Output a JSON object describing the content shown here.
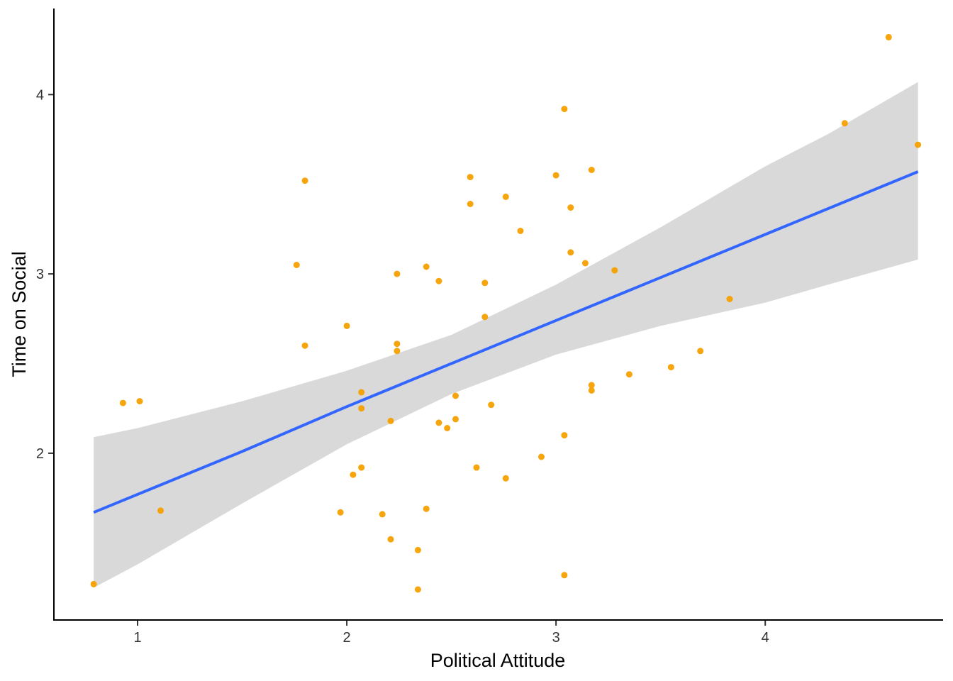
{
  "chart_data": {
    "type": "scatter",
    "title": "",
    "xlabel": "Political Attitude",
    "ylabel": "Time on Social",
    "xlim": [
      0.6,
      4.85
    ],
    "ylim": [
      1.07,
      4.48
    ],
    "xticks": [
      1,
      2,
      3,
      4
    ],
    "yticks": [
      2,
      3,
      4
    ],
    "xtick_labels": [
      "1",
      "2",
      "3",
      "4"
    ],
    "ytick_labels": [
      "2",
      "3",
      "4"
    ],
    "grid": false,
    "legend": "none",
    "point_color": "#F5A000",
    "points": [
      {
        "x": 0.79,
        "y": 1.27
      },
      {
        "x": 0.93,
        "y": 2.28
      },
      {
        "x": 1.01,
        "y": 2.29
      },
      {
        "x": 1.11,
        "y": 1.68
      },
      {
        "x": 1.76,
        "y": 3.05
      },
      {
        "x": 1.8,
        "y": 3.52
      },
      {
        "x": 1.8,
        "y": 2.6
      },
      {
        "x": 1.97,
        "y": 1.67
      },
      {
        "x": 2.0,
        "y": 2.71
      },
      {
        "x": 2.03,
        "y": 1.88
      },
      {
        "x": 2.07,
        "y": 2.34
      },
      {
        "x": 2.07,
        "y": 2.25
      },
      {
        "x": 2.07,
        "y": 1.92
      },
      {
        "x": 2.17,
        "y": 1.66
      },
      {
        "x": 2.21,
        "y": 2.18
      },
      {
        "x": 2.21,
        "y": 1.52
      },
      {
        "x": 2.24,
        "y": 3.0
      },
      {
        "x": 2.24,
        "y": 2.61
      },
      {
        "x": 2.24,
        "y": 2.57
      },
      {
        "x": 2.34,
        "y": 1.46
      },
      {
        "x": 2.34,
        "y": 1.24
      },
      {
        "x": 2.38,
        "y": 3.04
      },
      {
        "x": 2.38,
        "y": 1.69
      },
      {
        "x": 2.44,
        "y": 2.96
      },
      {
        "x": 2.44,
        "y": 2.17
      },
      {
        "x": 2.48,
        "y": 2.14
      },
      {
        "x": 2.52,
        "y": 2.32
      },
      {
        "x": 2.52,
        "y": 2.19
      },
      {
        "x": 2.59,
        "y": 3.54
      },
      {
        "x": 2.59,
        "y": 3.39
      },
      {
        "x": 2.62,
        "y": 1.92
      },
      {
        "x": 2.66,
        "y": 2.95
      },
      {
        "x": 2.66,
        "y": 2.76
      },
      {
        "x": 2.69,
        "y": 2.27
      },
      {
        "x": 2.76,
        "y": 3.43
      },
      {
        "x": 2.76,
        "y": 1.86
      },
      {
        "x": 2.83,
        "y": 3.24
      },
      {
        "x": 2.93,
        "y": 1.98
      },
      {
        "x": 3.0,
        "y": 3.55
      },
      {
        "x": 3.04,
        "y": 3.92
      },
      {
        "x": 3.04,
        "y": 2.1
      },
      {
        "x": 3.04,
        "y": 1.32
      },
      {
        "x": 3.07,
        "y": 3.37
      },
      {
        "x": 3.07,
        "y": 3.12
      },
      {
        "x": 3.14,
        "y": 3.06
      },
      {
        "x": 3.17,
        "y": 3.58
      },
      {
        "x": 3.17,
        "y": 2.38
      },
      {
        "x": 3.17,
        "y": 2.35
      },
      {
        "x": 3.28,
        "y": 3.02
      },
      {
        "x": 3.35,
        "y": 2.44
      },
      {
        "x": 3.55,
        "y": 2.48
      },
      {
        "x": 3.69,
        "y": 2.57
      },
      {
        "x": 3.83,
        "y": 2.86
      },
      {
        "x": 4.38,
        "y": 3.84
      },
      {
        "x": 4.59,
        "y": 4.32
      },
      {
        "x": 4.73,
        "y": 3.72
      }
    ],
    "fit_line": {
      "color": "#3366FF",
      "x": [
        0.79,
        1.5,
        2.0,
        2.5,
        3.0,
        3.5,
        4.0,
        4.73
      ],
      "y": [
        1.67,
        2.01,
        2.26,
        2.5,
        2.74,
        2.98,
        3.22,
        3.57
      ]
    },
    "confidence_band": {
      "color": "#D9D9D9",
      "x": [
        0.79,
        1.0,
        1.5,
        2.0,
        2.5,
        3.0,
        3.5,
        4.0,
        4.3,
        4.73
      ],
      "lower": [
        1.25,
        1.38,
        1.72,
        2.05,
        2.33,
        2.55,
        2.71,
        2.84,
        2.94,
        3.08
      ],
      "upper": [
        2.09,
        2.14,
        2.29,
        2.46,
        2.66,
        2.94,
        3.26,
        3.6,
        3.78,
        4.07
      ]
    }
  }
}
